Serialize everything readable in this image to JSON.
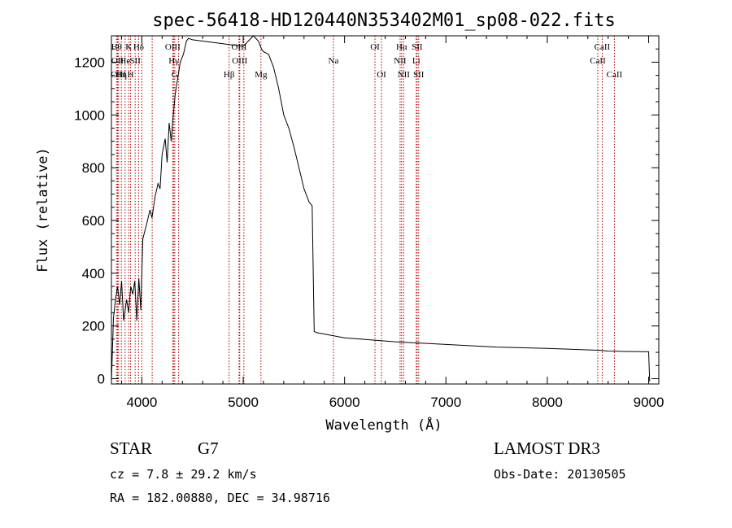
{
  "chart_data": {
    "type": "line",
    "title": "spec-56418-HD120440N353402M01_sp08-022.fits",
    "xlabel": "Wavelength (Å)",
    "ylabel": "Flux (relative)",
    "xlim": [
      3700,
      9100
    ],
    "ylim": [
      -20,
      1300
    ],
    "x_ticks": [
      4000,
      5000,
      6000,
      7000,
      8000,
      9000
    ],
    "y_ticks": [
      0,
      200,
      400,
      600,
      800,
      1000,
      1200
    ],
    "grid": false,
    "series": [
      {
        "x": [
          3700,
          3720,
          3740,
          3760,
          3780,
          3800,
          3820,
          3850,
          3870,
          3890,
          3910,
          3930,
          3950,
          3970,
          3990,
          4010,
          4030,
          4050,
          4080,
          4100,
          4130,
          4160,
          4180,
          4200,
          4230,
          4250,
          4270,
          4290,
          4310,
          4330,
          4350,
          4380,
          4410,
          4440,
          4460,
          4500,
          4800,
          5000,
          5100,
          5150,
          5180,
          5200,
          5250,
          5300,
          5350,
          5400,
          5450,
          5500,
          5550,
          5600,
          5650,
          5680,
          5700,
          5720,
          6000,
          6500,
          7000,
          7500,
          8000,
          8500,
          8600,
          8700,
          9000,
          9010
        ],
        "y": [
          -10,
          230,
          300,
          350,
          280,
          370,
          220,
          300,
          250,
          350,
          320,
          370,
          220,
          380,
          260,
          530,
          560,
          590,
          640,
          610,
          690,
          740,
          720,
          850,
          910,
          820,
          970,
          900,
          1000,
          1080,
          1130,
          1200,
          1230,
          1280,
          1290,
          1285,
          1270,
          1260,
          1300,
          1280,
          1250,
          1240,
          1230,
          1180,
          1100,
          1000,
          950,
          880,
          800,
          720,
          670,
          655,
          180,
          175,
          155,
          140,
          130,
          120,
          115,
          108,
          105,
          104,
          102,
          -10
        ]
      }
    ],
    "lines": [
      {
        "wl": 3750,
        "label": "Hθ",
        "row": 1
      },
      {
        "wl": 3760,
        "label": "OII",
        "row": 2
      },
      {
        "wl": 3770,
        "label": "OIII",
        "row": 3
      },
      {
        "wl": 3798,
        "label": "Hη",
        "row": 3
      },
      {
        "wl": 3835,
        "label": "He",
        "row": 2
      },
      {
        "wl": 3870,
        "label": "K",
        "row": 1
      },
      {
        "wl": 3889,
        "label": "H",
        "row": 3
      },
      {
        "wl": 3934,
        "label": "SII",
        "row": 2
      },
      {
        "wl": 3968,
        "label": "Hδ",
        "row": 1
      },
      {
        "wl": 4000,
        "label": "",
        "row": 0
      },
      {
        "wl": 4102,
        "label": "",
        "row": 0
      },
      {
        "wl": 4305,
        "label": "OIII",
        "row": 1
      },
      {
        "wl": 4315,
        "label": "Hγ",
        "row": 2
      },
      {
        "wl": 4325,
        "label": "G",
        "row": 3
      },
      {
        "wl": 4363,
        "label": "",
        "row": 0
      },
      {
        "wl": 4861,
        "label": "Hβ",
        "row": 3
      },
      {
        "wl": 4959,
        "label": "OIII",
        "row": 1
      },
      {
        "wl": 4966,
        "label": "OIII",
        "row": 2
      },
      {
        "wl": 5007,
        "label": "",
        "row": 0
      },
      {
        "wl": 5175,
        "label": "Mg",
        "row": 3
      },
      {
        "wl": 5890,
        "label": "Na",
        "row": 2
      },
      {
        "wl": 6300,
        "label": "OI",
        "row": 1
      },
      {
        "wl": 6364,
        "label": "OI",
        "row": 3
      },
      {
        "wl": 6548,
        "label": "NII",
        "row": 2
      },
      {
        "wl": 6563,
        "label": "Hα",
        "row": 1
      },
      {
        "wl": 6583,
        "label": "NII",
        "row": 3
      },
      {
        "wl": 6707,
        "label": "Li",
        "row": 2
      },
      {
        "wl": 6716,
        "label": "SII",
        "row": 1
      },
      {
        "wl": 6731,
        "label": "SII",
        "row": 3
      },
      {
        "wl": 8498,
        "label": "CaII",
        "row": 2
      },
      {
        "wl": 8542,
        "label": "CaII",
        "row": 1
      },
      {
        "wl": 8662,
        "label": "CaII",
        "row": 3
      }
    ]
  },
  "info": {
    "class": "STAR",
    "subclass": "G7",
    "survey": "LAMOST DR3",
    "cz": "cz = 7.8 ± 29.2 km/s",
    "obs_date": "Obs-Date: 20130505",
    "radec": "RA = 182.00880, DEC =  34.98716"
  }
}
